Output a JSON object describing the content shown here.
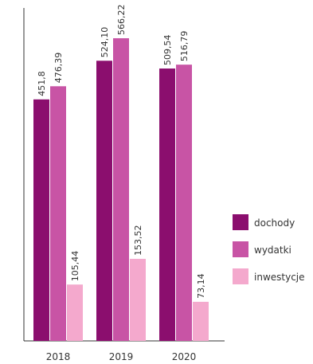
{
  "chart_data": {
    "type": "bar",
    "title": "",
    "xlabel": "",
    "ylabel": "",
    "categories": [
      "2018",
      "2019",
      "2020"
    ],
    "series": [
      {
        "name": "dochody",
        "values": [
          451.8,
          524.1,
          509.54
        ],
        "labels": [
          "451,8",
          "524,10",
          "509,54"
        ],
        "color": "#8b0e6e"
      },
      {
        "name": "wydatki",
        "values": [
          476.39,
          566.22,
          516.79
        ],
        "labels": [
          "476,39",
          "566,22",
          "516,79"
        ],
        "color": "#c854a5"
      },
      {
        "name": "inwestycje",
        "values": [
          105.44,
          153.52,
          73.14
        ],
        "labels": [
          "105,44",
          "153,52",
          "73,14"
        ],
        "color": "#f4a9cd"
      }
    ],
    "ylim": [
      0,
      600
    ],
    "grid": false,
    "legend": "right",
    "axis_color": "#333333"
  }
}
